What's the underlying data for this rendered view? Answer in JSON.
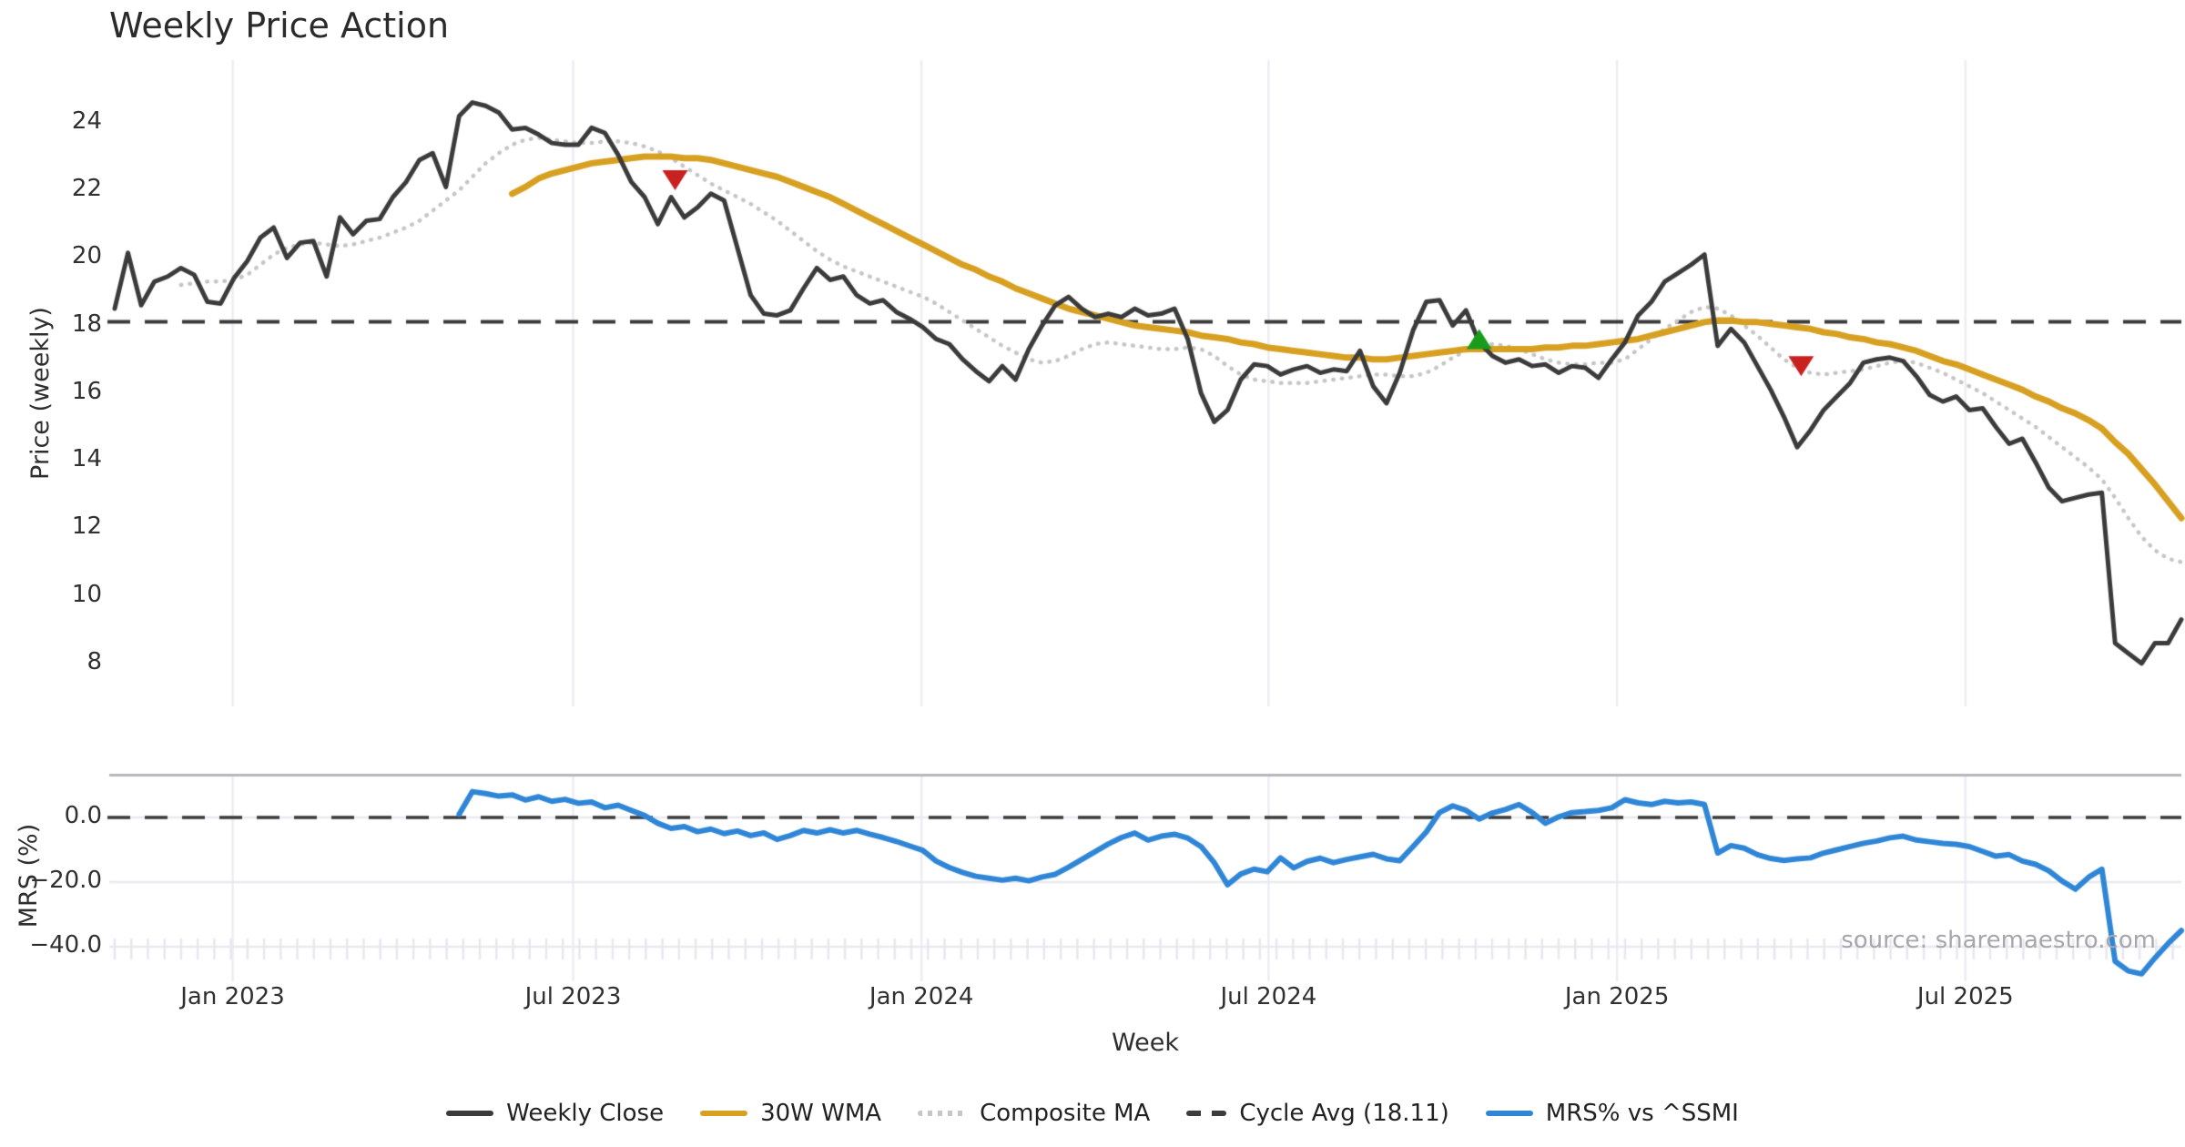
{
  "title": "Weekly Price Action",
  "source": "source: sharemaestro.com",
  "colors": {
    "close": "#3b3b3b",
    "wma": "#d7a021",
    "composite": "#c6c6c6",
    "cycle_dash": "#3b3b3b",
    "mrs": "#2f86d6",
    "sell_marker": "#c92020",
    "buy_marker": "#1a9c1a",
    "grid": "#ececf4",
    "grid_h": "#e9e9f1",
    "spine": "#b6b6bc",
    "minor_tick": "#e7e7f0"
  },
  "chart_data": {
    "type": "line",
    "title": "Weekly Price Action",
    "xlabel": "Week",
    "n_weeks": 157,
    "x_ticks": {
      "positions": [
        8.9,
        34.6,
        60.9,
        87.1,
        113.4,
        139.7
      ],
      "labels": [
        "Jan 2023",
        "Jul 2023",
        "Jan 2024",
        "Jul 2024",
        "Jan 2025",
        "Jul 2025"
      ]
    },
    "panels": [
      {
        "name": "price",
        "ylabel": "Price (weekly)",
        "ylim": [
          6.7,
          25.85
        ],
        "yticks": [
          24,
          22,
          20,
          18,
          16,
          14,
          12,
          10,
          8
        ],
        "ytick_labels": [
          "24",
          "22",
          "20",
          "18",
          "16",
          "14",
          "12",
          "10",
          "8"
        ],
        "cycle_avg": 18.11,
        "series": [
          {
            "name": "Weekly Close",
            "style": "solid",
            "color": "#3b3b3b",
            "values": [
              18.5,
              20.15,
              18.6,
              19.3,
              19.45,
              19.7,
              19.5,
              18.7,
              18.65,
              19.4,
              19.9,
              20.6,
              20.9,
              20.0,
              20.45,
              20.5,
              19.45,
              21.2,
              20.7,
              21.1,
              21.15,
              21.8,
              22.25,
              22.9,
              23.1,
              22.1,
              24.2,
              24.6,
              24.5,
              24.3,
              23.8,
              23.85,
              23.65,
              23.4,
              23.35,
              23.35,
              23.85,
              23.7,
              23.05,
              22.25,
              21.8,
              21.0,
              21.8,
              21.2,
              21.5,
              21.9,
              21.7,
              20.3,
              18.9,
              18.35,
              18.3,
              18.45,
              19.1,
              19.7,
              19.35,
              19.45,
              18.9,
              18.65,
              18.75,
              18.4,
              18.2,
              17.95,
              17.6,
              17.45,
              17.0,
              16.65,
              16.35,
              16.8,
              16.4,
              17.3,
              18.0,
              18.6,
              18.85,
              18.5,
              18.25,
              18.35,
              18.25,
              18.5,
              18.3,
              18.35,
              18.5,
              17.6,
              16.0,
              15.15,
              15.5,
              16.4,
              16.85,
              16.8,
              16.55,
              16.7,
              16.8,
              16.6,
              16.7,
              16.65,
              17.25,
              16.2,
              15.7,
              16.6,
              17.85,
              18.7,
              18.75,
              18.0,
              18.45,
              17.5,
              17.1,
              16.9,
              17.0,
              16.8,
              16.85,
              16.6,
              16.8,
              16.75,
              16.45,
              17.0,
              17.5,
              18.3,
              18.7,
              19.3,
              19.55,
              19.8,
              20.1,
              17.4,
              17.9,
              17.5,
              16.8,
              16.1,
              15.3,
              14.4,
              14.9,
              15.5,
              15.9,
              16.3,
              16.9,
              17.0,
              17.05,
              16.95,
              16.5,
              15.95,
              15.75,
              15.9,
              15.5,
              15.55,
              15.0,
              14.5,
              14.65,
              13.95,
              13.2,
              12.8,
              12.9,
              13.0,
              13.05,
              8.6,
              8.3,
              8.0,
              8.6,
              8.6,
              9.3
            ]
          },
          {
            "name": "30W WMA",
            "style": "solid",
            "color": "#d7a021",
            "values": [
              null,
              null,
              null,
              null,
              null,
              null,
              null,
              null,
              null,
              null,
              null,
              null,
              null,
              null,
              null,
              null,
              null,
              null,
              null,
              null,
              null,
              null,
              null,
              null,
              null,
              null,
              null,
              null,
              null,
              null,
              21.9,
              22.1,
              22.35,
              22.5,
              22.6,
              22.7,
              22.8,
              22.85,
              22.9,
              22.95,
              23.0,
              23.0,
              23.0,
              22.95,
              22.95,
              22.9,
              22.8,
              22.7,
              22.6,
              22.5,
              22.4,
              22.25,
              22.1,
              21.95,
              21.8,
              21.6,
              21.4,
              21.2,
              21.0,
              20.8,
              20.6,
              20.4,
              20.2,
              20.0,
              19.8,
              19.65,
              19.45,
              19.3,
              19.1,
              18.95,
              18.8,
              18.65,
              18.5,
              18.4,
              18.3,
              18.2,
              18.1,
              18.0,
              17.95,
              17.9,
              17.85,
              17.8,
              17.7,
              17.65,
              17.6,
              17.5,
              17.45,
              17.35,
              17.3,
              17.25,
              17.2,
              17.15,
              17.1,
              17.05,
              17.05,
              17.0,
              17.0,
              17.05,
              17.1,
              17.15,
              17.2,
              17.25,
              17.3,
              17.3,
              17.3,
              17.3,
              17.3,
              17.3,
              17.35,
              17.35,
              17.4,
              17.4,
              17.45,
              17.5,
              17.55,
              17.6,
              17.7,
              17.8,
              17.9,
              18.0,
              18.1,
              18.15,
              18.15,
              18.1,
              18.1,
              18.05,
              18.0,
              17.95,
              17.9,
              17.8,
              17.75,
              17.65,
              17.6,
              17.5,
              17.45,
              17.35,
              17.25,
              17.1,
              16.95,
              16.85,
              16.7,
              16.55,
              16.4,
              16.25,
              16.1,
              15.9,
              15.75,
              15.55,
              15.4,
              15.2,
              14.95,
              14.55,
              14.2,
              13.75,
              13.3,
              12.8,
              12.3
            ]
          },
          {
            "name": "Composite MA",
            "style": "dotted",
            "color": "#c6c6c6",
            "values": [
              null,
              null,
              null,
              null,
              null,
              19.2,
              19.25,
              19.3,
              19.3,
              19.35,
              19.5,
              19.8,
              20.1,
              20.3,
              20.4,
              20.45,
              20.4,
              20.35,
              20.4,
              20.5,
              20.6,
              20.75,
              20.9,
              21.1,
              21.4,
              21.7,
              22.0,
              22.4,
              22.8,
              23.1,
              23.35,
              23.5,
              23.55,
              23.5,
              23.45,
              23.4,
              23.4,
              23.45,
              23.45,
              23.4,
              23.3,
              23.15,
              22.95,
              22.7,
              22.45,
              22.2,
              22.0,
              21.8,
              21.6,
              21.35,
              21.1,
              20.8,
              20.5,
              20.2,
              19.95,
              19.75,
              19.6,
              19.45,
              19.3,
              19.15,
              19.0,
              18.85,
              18.65,
              18.4,
              18.15,
              17.9,
              17.65,
              17.4,
              17.2,
              17.0,
              16.9,
              16.95,
              17.1,
              17.3,
              17.45,
              17.5,
              17.45,
              17.4,
              17.35,
              17.3,
              17.3,
              17.35,
              17.3,
              17.1,
              16.8,
              16.55,
              16.4,
              16.35,
              16.3,
              16.3,
              16.3,
              16.35,
              16.4,
              16.45,
              16.5,
              16.55,
              16.55,
              16.5,
              16.5,
              16.6,
              16.8,
              17.05,
              17.25,
              17.4,
              17.45,
              17.4,
              17.3,
              17.15,
              17.0,
              16.9,
              16.85,
              16.85,
              16.9,
              16.9,
              17.0,
              17.3,
              17.6,
              17.9,
              18.15,
              18.4,
              18.55,
              18.5,
              18.3,
              18.0,
              17.7,
              17.35,
              17.0,
              16.75,
              16.6,
              16.55,
              16.6,
              16.65,
              16.7,
              16.8,
              16.9,
              16.95,
              16.9,
              16.75,
              16.6,
              16.4,
              16.2,
              16.0,
              15.75,
              15.5,
              15.25,
              15.0,
              14.7,
              14.4,
              14.1,
              13.8,
              13.45,
              12.9,
              12.3,
              11.75,
              11.35,
              11.1,
              11.0
            ]
          }
        ],
        "markers": [
          {
            "signal": "sell",
            "shape": "triangle-down",
            "color": "#c92020",
            "week": 42.3,
            "value": 22.3
          },
          {
            "signal": "buy",
            "shape": "triangle-up",
            "color": "#1a9c1a",
            "week": 103.0,
            "value": 17.6
          },
          {
            "signal": "sell",
            "shape": "triangle-down",
            "color": "#c92020",
            "week": 127.3,
            "value": 16.8
          }
        ]
      },
      {
        "name": "mrs",
        "ylabel": "MRS (%)",
        "ylim": [
          -50.7,
          13.2
        ],
        "yticks": [
          0,
          -20,
          -40
        ],
        "ytick_labels": [
          "0.0",
          "−20.0",
          "−40.0"
        ],
        "zero_line": 0,
        "series": [
          {
            "name": "MRS% vs ^SSMI",
            "style": "solid",
            "color": "#2f86d6",
            "values": [
              null,
              null,
              null,
              null,
              null,
              null,
              null,
              null,
              null,
              null,
              null,
              null,
              null,
              null,
              null,
              null,
              null,
              null,
              null,
              null,
              null,
              null,
              null,
              null,
              null,
              null,
              1.0,
              8.0,
              7.4,
              6.6,
              7.0,
              5.4,
              6.4,
              5.0,
              5.6,
              4.4,
              4.8,
              3.0,
              3.8,
              2.2,
              0.6,
              -1.8,
              -3.4,
              -2.8,
              -4.4,
              -3.6,
              -5.0,
              -4.2,
              -5.6,
              -4.8,
              -6.8,
              -5.6,
              -4.0,
              -4.8,
              -3.8,
              -4.8,
              -4.0,
              -5.2,
              -6.2,
              -7.4,
              -8.8,
              -10.2,
              -13.5,
              -15.5,
              -17.0,
              -18.2,
              -18.8,
              -19.4,
              -18.8,
              -19.6,
              -18.4,
              -17.6,
              -15.4,
              -13.0,
              -10.6,
              -8.2,
              -6.2,
              -4.8,
              -7.0,
              -5.8,
              -5.2,
              -6.4,
              -9.0,
              -14.0,
              -20.8,
              -17.5,
              -16.0,
              -16.8,
              -12.5,
              -15.6,
              -13.6,
              -12.6,
              -14.0,
              -13.0,
              -12.2,
              -11.4,
              -12.8,
              -13.4,
              -9.0,
              -4.5,
              1.5,
              3.6,
              2.2,
              -0.5,
              1.4,
              2.5,
              4.0,
              1.5,
              -1.8,
              0.2,
              1.5,
              1.8,
              2.2,
              3.0,
              5.5,
              4.5,
              4.0,
              5.0,
              4.5,
              4.8,
              4.0,
              -11.0,
              -8.7,
              -9.5,
              -11.5,
              -12.7,
              -13.3,
              -12.8,
              -12.5,
              -11.0,
              -10.0,
              -9.0,
              -8.0,
              -7.3,
              -6.3,
              -5.8,
              -7.0,
              -7.5,
              -8.0,
              -8.3,
              -9.0,
              -10.5,
              -12.0,
              -11.5,
              -13.5,
              -14.5,
              -16.5,
              -19.7,
              -22.2,
              -18.5,
              -16.0,
              -44.5,
              -47.5,
              -48.4,
              -43.5,
              -39.0,
              -35.0
            ]
          }
        ]
      }
    ],
    "legend": [
      {
        "label": "Weekly Close",
        "style": "solid",
        "color": "#3b3b3b"
      },
      {
        "label": "30W WMA",
        "style": "solid",
        "color": "#d7a021"
      },
      {
        "label": "Composite MA",
        "style": "dotted",
        "color": "#c6c6c6"
      },
      {
        "label": "Cycle Avg (18.11)",
        "style": "dashed",
        "color": "#3b3b3b"
      },
      {
        "label": "MRS% vs ^SSMI",
        "style": "solid",
        "color": "#2f86d6"
      }
    ]
  }
}
